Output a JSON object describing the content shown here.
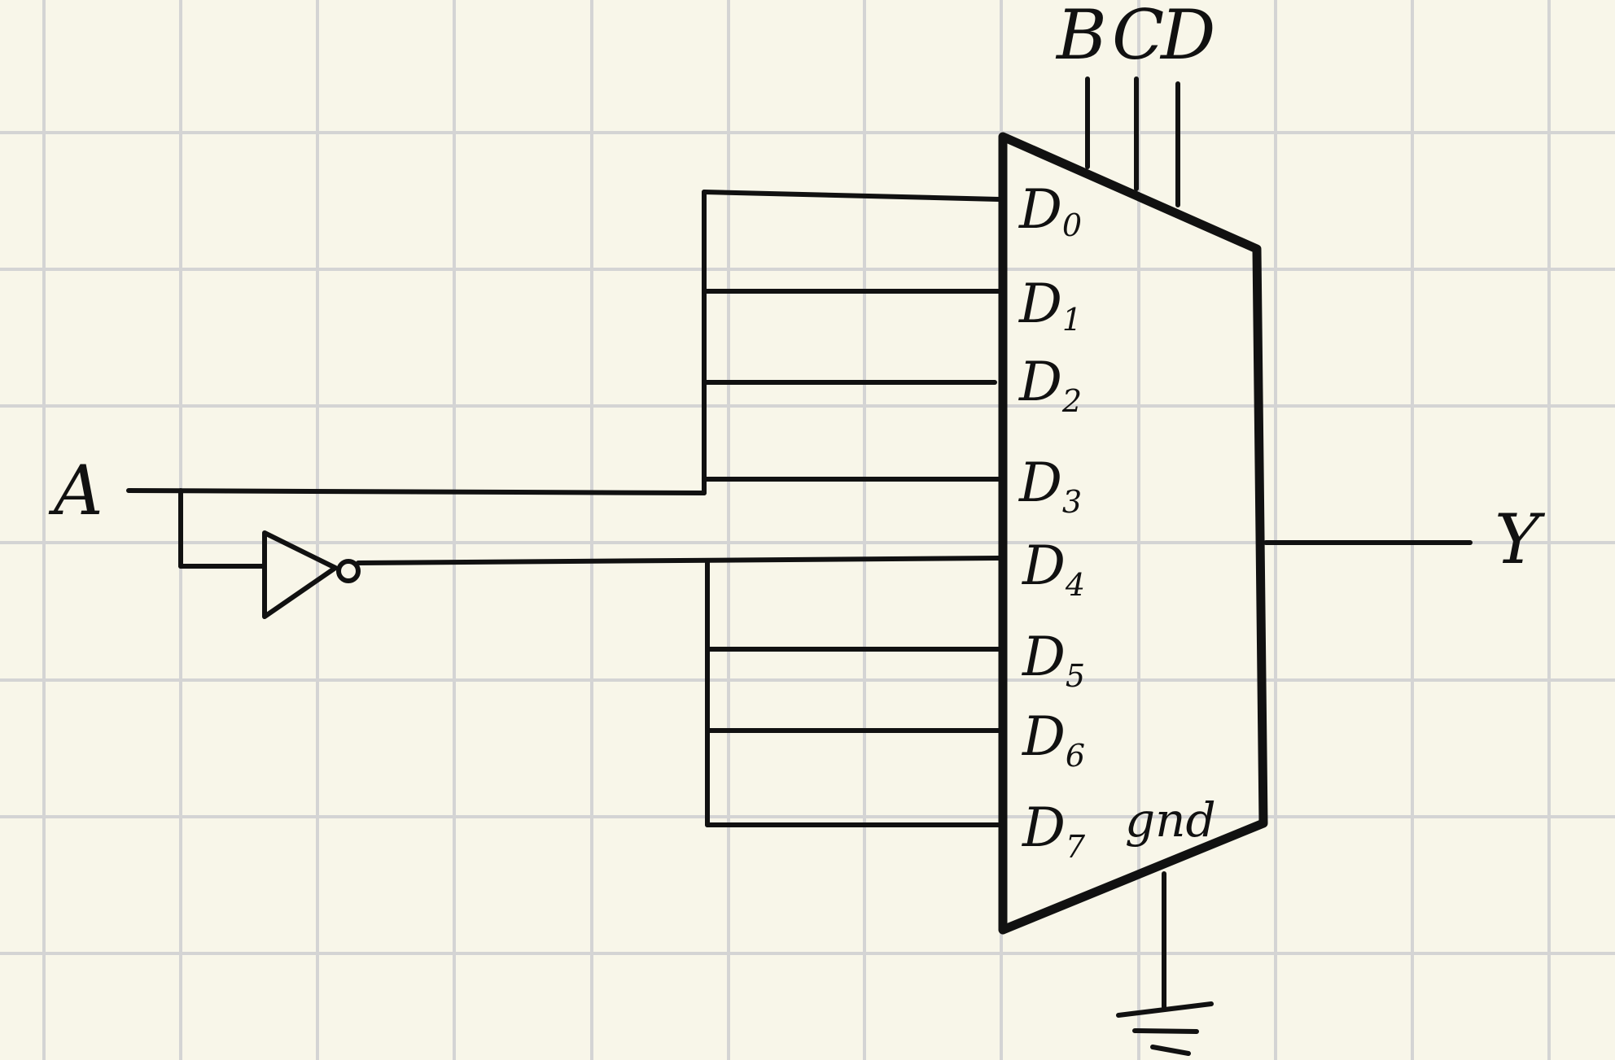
{
  "diagram": {
    "input_label": "A",
    "output_label": "Y",
    "select_labels": [
      "B",
      "C",
      "D"
    ],
    "ground_label": "gnd",
    "pins": [
      {
        "base": "D",
        "sub": "0"
      },
      {
        "base": "D",
        "sub": "1"
      },
      {
        "base": "D",
        "sub": "2"
      },
      {
        "base": "D",
        "sub": "3"
      },
      {
        "base": "D",
        "sub": "4"
      },
      {
        "base": "D",
        "sub": "5"
      },
      {
        "base": "D",
        "sub": "6"
      },
      {
        "base": "D",
        "sub": "7"
      }
    ]
  }
}
